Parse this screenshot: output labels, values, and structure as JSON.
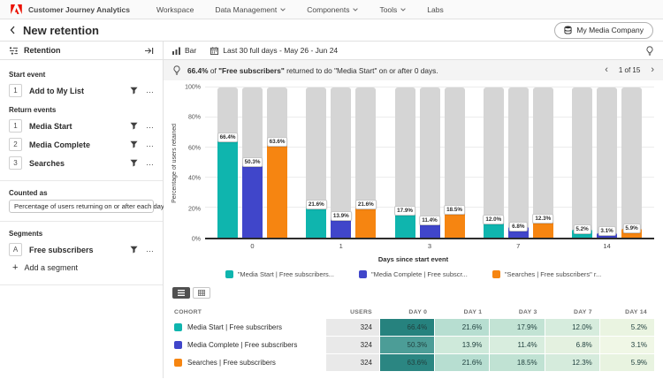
{
  "colors": {
    "adobe_red": "#EB1000",
    "teal": "#0FB5AE",
    "purple": "#4046CA",
    "orange": "#F68511",
    "gray_bar": "#D5D5D5"
  },
  "icons": {
    "logo": "adobe-logo-icon",
    "filter": "funnel-icon",
    "more": "more-dots-icon",
    "insight": "lightbulb-icon",
    "date": "calendar-icon",
    "chart_type": "bar-chart-icon",
    "data_view": "database-icon"
  },
  "top_nav": {
    "app_title": "Customer Journey Analytics",
    "items": [
      {
        "label": "Workspace",
        "has_chevron": false
      },
      {
        "label": "Data Management",
        "has_chevron": true
      },
      {
        "label": "Components",
        "has_chevron": true
      },
      {
        "label": "Tools",
        "has_chevron": true
      },
      {
        "label": "Labs",
        "has_chevron": false
      }
    ]
  },
  "header": {
    "title": "New retention",
    "data_view_button": "My Media Company"
  },
  "sidebar": {
    "panel_title": "Retention",
    "start_event_label": "Start event",
    "start_events": [
      {
        "num": "1",
        "label": "Add to My List"
      }
    ],
    "return_events_label": "Return events",
    "return_events": [
      {
        "num": "1",
        "label": "Media Start"
      },
      {
        "num": "2",
        "label": "Media Complete"
      },
      {
        "num": "3",
        "label": "Searches"
      }
    ],
    "counted_as_label": "Counted as",
    "counted_as_value": "Percentage of users returning on or after each day",
    "segments_label": "Segments",
    "segments": [
      {
        "num": "A",
        "label": "Free subscribers"
      }
    ],
    "add_segment_label": "Add a segment"
  },
  "toolbar": {
    "chart_type": "Bar",
    "date_range": "Last 30 full days - May 26 - Jun 24"
  },
  "insight": {
    "parts": [
      {
        "text": "66.4%",
        "bold": true
      },
      {
        "text": " of ",
        "bold": false
      },
      {
        "text": "\"Free subscribers\"",
        "bold": true
      },
      {
        "text": " returned to do \"Media Start\" on or after 0 days.",
        "bold": false
      }
    ],
    "pagination": "1 of 15",
    "prev": "‹",
    "next": "›"
  },
  "chart_data": {
    "type": "bar",
    "title": "",
    "xlabel": "Days since start event",
    "ylabel": "Percentage of users retained",
    "ylim": [
      0,
      100
    ],
    "grid": true,
    "legend_position": "bottom",
    "yticks": [
      "0%",
      "20%",
      "40%",
      "60%",
      "80%",
      "100%"
    ],
    "categories": [
      "0",
      "1",
      "3",
      "7",
      "14"
    ],
    "series": [
      {
        "name": "\"Media Start | Free subscribers...",
        "color": "#0FB5AE",
        "values": [
          66.4,
          21.6,
          17.9,
          12.0,
          5.2
        ],
        "labels": [
          "66.4%",
          "21.6%",
          "17.9%",
          "12.0%",
          "5.2%"
        ]
      },
      {
        "name": "\"Media Complete | Free subscr...",
        "color": "#4046CA",
        "values": [
          50.3,
          13.9,
          11.4,
          6.8,
          3.1
        ],
        "labels": [
          "50.3%",
          "13.9%",
          "11.4%",
          "6.8%",
          "3.1%"
        ]
      },
      {
        "name": "\"Searches | Free subscribers\" r...",
        "color": "#F68511",
        "values": [
          63.6,
          21.6,
          18.5,
          12.3,
          5.9
        ],
        "labels": [
          "63.6%",
          "21.6%",
          "18.5%",
          "12.3%",
          "5.9%"
        ]
      }
    ]
  },
  "table": {
    "headers": [
      "COHORT",
      "USERS",
      "DAY 0",
      "DAY 1",
      "DAY 3",
      "DAY 7",
      "DAY 14"
    ],
    "rows": [
      {
        "color": "#0FB5AE",
        "cohort": "Media Start | Free subscribers",
        "users": "324",
        "cells": [
          {
            "v": "66.4%",
            "bg": "#26827E"
          },
          {
            "v": "21.6%",
            "bg": "#B7DED1"
          },
          {
            "v": "17.9%",
            "bg": "#C2E3D4"
          },
          {
            "v": "12.0%",
            "bg": "#D6ECDD"
          },
          {
            "v": "5.2%",
            "bg": "#EAF4E1"
          }
        ]
      },
      {
        "color": "#4046CA",
        "cohort": "Media Complete | Free subscribers",
        "users": "324",
        "cells": [
          {
            "v": "50.3%",
            "bg": "#4C9D97"
          },
          {
            "v": "13.9%",
            "bg": "#CEE9DA"
          },
          {
            "v": "11.4%",
            "bg": "#D8EDDE"
          },
          {
            "v": "6.8%",
            "bg": "#E4F1E0"
          },
          {
            "v": "3.1%",
            "bg": "#F0F7E6"
          }
        ]
      },
      {
        "color": "#F68511",
        "cohort": "Searches | Free subscribers",
        "users": "324",
        "cells": [
          {
            "v": "63.6%",
            "bg": "#2B8682"
          },
          {
            "v": "21.6%",
            "bg": "#B7DED1"
          },
          {
            "v": "18.5%",
            "bg": "#C0E2D3"
          },
          {
            "v": "12.3%",
            "bg": "#D5EBDC"
          },
          {
            "v": "5.9%",
            "bg": "#E8F3E0"
          }
        ]
      }
    ]
  }
}
